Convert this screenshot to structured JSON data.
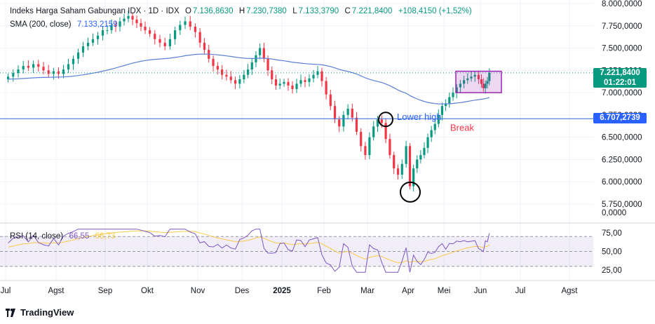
{
  "chart_data": {
    "type": "candlestick",
    "symbol_line": "Indeks Harga Saham Gabungan IDX · 1D · IDX",
    "ohlc": {
      "open_label": "O",
      "open": "7.136,8630",
      "high_label": "H",
      "high": "7.230,7380",
      "low_label": "L",
      "low": "7.133,3790",
      "close_label": "C",
      "close": "7.221,8400",
      "change": "+108,4150 (+1,52%)"
    },
    "sma": {
      "label": "SMA (200, close)",
      "value": "7.133,2159"
    },
    "rsi": {
      "label": "RSI (14, close)",
      "value": "66,55",
      "ma_value": "66,73"
    },
    "price_ticks": [
      "8.000,0000",
      "7.750,0000",
      "7.500,0000",
      "7.250,0000",
      "7.000,0000",
      "6.750,0000",
      "6.500,0000",
      "6.250,0000",
      "6.000,0000",
      "5.750,0000"
    ],
    "price_tick_values": [
      8000,
      7750,
      7500,
      7250,
      7000,
      6750,
      6500,
      6250,
      6000,
      5750
    ],
    "zero_tick": "0,0000",
    "rsi_ticks": [
      "75,00",
      "50,00",
      "25,00"
    ],
    "rsi_tick_values": [
      75,
      50,
      25
    ],
    "time_labels": [
      "Jul",
      "Agst",
      "Sep",
      "Okt",
      "Nov",
      "Des",
      "2025",
      "Feb",
      "Mar",
      "Apr",
      "Mei",
      "Jun",
      "Jul",
      "Agst"
    ],
    "time_label_bold": "2025",
    "current_price_tag": "7.221,8400",
    "countdown_tag": "01:22:01",
    "level_line_tag": "6.707,2739",
    "level_line_value": 6707.2739,
    "annotations": {
      "lower_high": "Lower high",
      "break": "Break"
    },
    "colors": {
      "up": "#089981",
      "down": "#f23645",
      "sma": "#5b7fd9",
      "level": "#4a79d9",
      "rsi": "#7e57c2",
      "rsi_ma": "#f7c948",
      "box": "#9c27b0",
      "tag_green": "#089981",
      "tag_blue": "#2962ff"
    },
    "months": [
      {
        "m": "Jul",
        "close": [
          7180,
          7220,
          7260,
          7300,
          7280,
          7320,
          7290,
          7250,
          7210,
          7240
        ]
      },
      {
        "m": "Agst",
        "close": [
          7210,
          7260,
          7320,
          7380,
          7450,
          7520,
          7560,
          7600,
          7640,
          7700
        ]
      },
      {
        "m": "Sep",
        "close": [
          7700,
          7760,
          7740,
          7800,
          7830,
          7860,
          7820,
          7780,
          7740,
          7700
        ]
      },
      {
        "m": "Okt",
        "close": [
          7660,
          7600,
          7560,
          7520,
          7600,
          7700,
          7760,
          7800,
          7740,
          7680
        ]
      },
      {
        "m": "Nov",
        "close": [
          7560,
          7480,
          7380,
          7300,
          7260,
          7200,
          7180,
          7140,
          7100,
          7150
        ]
      },
      {
        "m": "Des",
        "close": [
          7200,
          7260,
          7340,
          7420,
          7500,
          7380,
          7250,
          7150,
          7080,
          7100
        ]
      },
      {
        "m": "Jan",
        "close": [
          7120,
          7080,
          7040,
          7100,
          7140,
          7120,
          7160,
          7200,
          7240,
          7130
        ]
      },
      {
        "m": "Feb",
        "close": [
          6980,
          6850,
          6700,
          6620,
          6750,
          6820,
          6720,
          6560,
          6400,
          6300
        ]
      },
      {
        "m": "Mar",
        "close": [
          6500,
          6620,
          6700,
          6660,
          6480,
          6300,
          6150,
          6080,
          6200,
          6400
        ]
      },
      {
        "m": "Apr",
        "close": [
          5950,
          6150,
          6250,
          6300,
          6380,
          6500,
          6580,
          6650,
          6750,
          6850
        ]
      },
      {
        "m": "Mei",
        "close": [
          6880,
          6950,
          7000,
          7060,
          7100,
          7140,
          7160,
          7180,
          7200,
          7150
        ]
      },
      {
        "m": "Jun",
        "close": [
          7100,
          7050,
          7100,
          7130,
          7222
        ]
      }
    ]
  }
}
